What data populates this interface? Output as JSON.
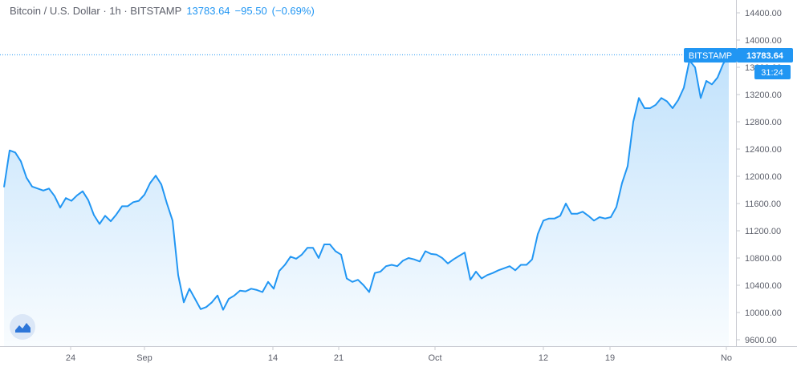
{
  "header": {
    "symbol_label": "Bitcoin / U.S. Dollar · 1h · BITSTAMP",
    "last_price": "13783.64",
    "change": "−95.50",
    "change_pct": "(−0.69%)"
  },
  "price_tag": {
    "exchange": "BITSTAMP",
    "price": "13783.64",
    "countdown": "31:24"
  },
  "colors": {
    "line": "#2196f3",
    "tag_bg": "#2196f3",
    "axis_text": "#5d606b"
  },
  "chart_data": {
    "type": "area",
    "title": "",
    "xlabel": "",
    "ylabel": "",
    "ylim": [
      9600,
      14600
    ],
    "x_ticks": [
      "24",
      "Sep",
      "14",
      "21",
      "Oct",
      "12",
      "19",
      "No"
    ],
    "y_ticks": [
      "9600.00",
      "10000.00",
      "10400.00",
      "10800.00",
      "11200.00",
      "11600.00",
      "12000.00",
      "12400.00",
      "12800.00",
      "13200.00",
      "13600.00",
      "14000.00",
      "14400.00"
    ],
    "current_price": 13783.64,
    "series": [
      {
        "values": [
          11840,
          12380,
          12350,
          12220,
          11980,
          11850,
          11820,
          11790,
          11820,
          11710,
          11540,
          11680,
          11640,
          11720,
          11780,
          11650,
          11430,
          11300,
          11420,
          11340,
          11440,
          11560,
          11560,
          11620,
          11640,
          11730,
          11900,
          12010,
          11880,
          11600,
          11350,
          10550,
          10150,
          10350,
          10200,
          10050,
          10080,
          10150,
          10250,
          10040,
          10200,
          10250,
          10320,
          10310,
          10350,
          10330,
          10300,
          10450,
          10350,
          10610,
          10700,
          10820,
          10790,
          10850,
          10950,
          10950,
          10800,
          11000,
          11000,
          10900,
          10850,
          10500,
          10450,
          10480,
          10400,
          10300,
          10580,
          10600,
          10680,
          10700,
          10680,
          10760,
          10800,
          10780,
          10750,
          10900,
          10860,
          10850,
          10800,
          10720,
          10780,
          10830,
          10880,
          10480,
          10600,
          10500,
          10550,
          10580,
          10620,
          10650,
          10680,
          10620,
          10700,
          10700,
          10780,
          11150,
          11350,
          11380,
          11380,
          11420,
          11600,
          11450,
          11450,
          11480,
          11420,
          11350,
          11400,
          11380,
          11400,
          11550,
          11900,
          12150,
          12800,
          13150,
          13000,
          13000,
          13050,
          13150,
          13100,
          13000,
          13120,
          13300,
          13700,
          13600,
          13150,
          13400,
          13350,
          13450,
          13650,
          13783.64
        ]
      }
    ]
  }
}
